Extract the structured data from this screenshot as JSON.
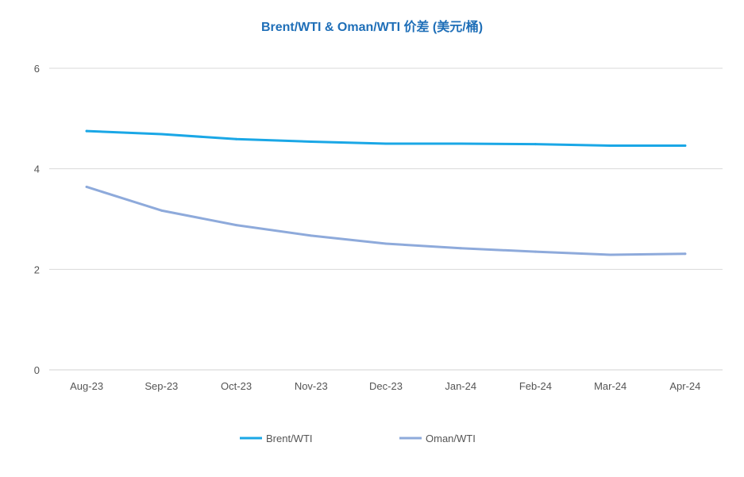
{
  "chart_data": {
    "type": "line",
    "title": "Brent/WTI & Oman/WTI 价差 (美元/桶)",
    "categories": [
      "Aug-23",
      "Sep-23",
      "Oct-23",
      "Nov-23",
      "Dec-23",
      "Jan-24",
      "Feb-24",
      "Mar-24",
      "Apr-24"
    ],
    "series": [
      {
        "name": "Brent/WTI",
        "color": "#1aa7e6",
        "values": [
          4.75,
          4.69,
          4.59,
          4.54,
          4.5,
          4.5,
          4.49,
          4.46,
          4.46
        ]
      },
      {
        "name": "Oman/WTI",
        "color": "#8eaadb",
        "values": [
          3.64,
          3.17,
          2.88,
          2.67,
          2.51,
          2.42,
          2.35,
          2.29,
          2.31
        ]
      }
    ],
    "ylim": [
      0,
      6
    ],
    "yticks": [
      0,
      2,
      4,
      6
    ],
    "grid": true,
    "legend": "bottom"
  }
}
